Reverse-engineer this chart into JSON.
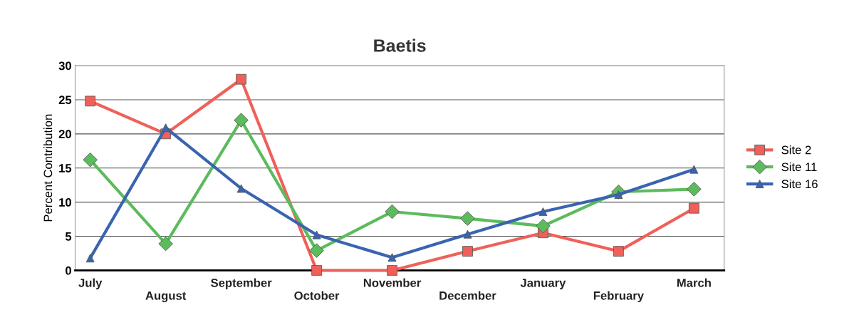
{
  "chart_data": {
    "type": "line",
    "title": "Baetis",
    "ylabel": "Percent Contribution",
    "categories": [
      "July",
      "August",
      "September",
      "October",
      "November",
      "December",
      "January",
      "February",
      "March"
    ],
    "series": [
      {
        "name": "Site 2",
        "color": "#f0605a",
        "marker": "square",
        "values": [
          24.8,
          20,
          28,
          0,
          0,
          2.8,
          5.5,
          2.8,
          9.1
        ]
      },
      {
        "name": "Site 11",
        "color": "#5cbb5c",
        "marker": "diamond",
        "values": [
          16.2,
          3.9,
          22,
          2.9,
          8.6,
          7.6,
          6.5,
          11.5,
          11.9
        ]
      },
      {
        "name": "Site 16",
        "color": "#3a64b0",
        "marker": "triangle",
        "values": [
          1.8,
          20.9,
          12,
          5.2,
          1.9,
          5.3,
          8.6,
          11.1,
          14.8
        ]
      }
    ],
    "ylim": [
      0,
      30
    ],
    "yticks": [
      0,
      5,
      10,
      15,
      20,
      25,
      30
    ],
    "grid": "y",
    "legend": "right"
  }
}
